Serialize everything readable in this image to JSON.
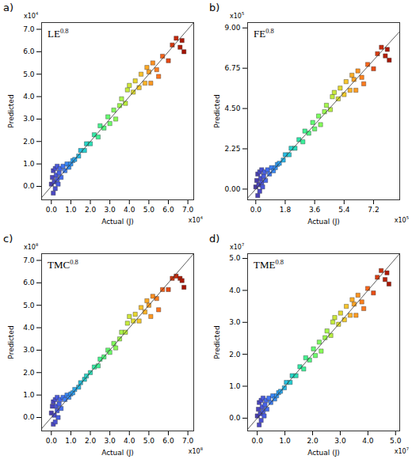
{
  "chart_data": [
    {
      "type": "scatter",
      "title": "a)",
      "annotation": {
        "text": "LE",
        "superscript": "0.8"
      },
      "x_label": "Actual (J)",
      "y_label": "Predicted",
      "x_multiplier": {
        "text": "x10",
        "superscript": "4"
      },
      "y_multiplier": {
        "text": "x10",
        "superscript": "4"
      },
      "marker": "square",
      "x": [
        0,
        0.05,
        0.1,
        0.1,
        0.15,
        0.2,
        0.2,
        0.25,
        0.3,
        0.3,
        0.35,
        0.4,
        0.45,
        0.5,
        0.6,
        0.7,
        0.8,
        0.9,
        1.0,
        1.1,
        1.2,
        1.4,
        1.5,
        1.7,
        1.8,
        2.0,
        2.2,
        2.4,
        2.5,
        2.7,
        2.9,
        3.0,
        3.2,
        3.3,
        3.5,
        3.6,
        3.8,
        3.9,
        4.0,
        4.2,
        4.3,
        4.5,
        4.6,
        4.8,
        4.9,
        5.0,
        5.1,
        5.2,
        5.4,
        5.5,
        5.7,
        6.0,
        6.2,
        6.4,
        6.6,
        6.7,
        6.8
      ],
      "values": [
        0.1,
        0.4,
        0.7,
        -0.3,
        0.2,
        0.8,
        -0.1,
        0.5,
        0.3,
        0.9,
        0.1,
        0.6,
        0.8,
        0.4,
        0.9,
        0.7,
        1.0,
        0.85,
        1.0,
        1.15,
        1.2,
        1.35,
        1.6,
        1.6,
        1.9,
        1.9,
        2.3,
        2.2,
        2.7,
        2.6,
        3.1,
        2.8,
        3.4,
        3.0,
        3.6,
        3.9,
        3.7,
        4.3,
        4.5,
        4.2,
        4.7,
        4.4,
        5.0,
        4.6,
        5.3,
        5.1,
        4.6,
        5.5,
        5.2,
        4.9,
        5.8,
        5.6,
        6.3,
        6.6,
        6.2,
        6.5,
        6.0
      ],
      "xlim": [
        -0.5,
        7.3
      ],
      "ylim": [
        -0.6,
        7.3
      ],
      "xticks": [
        {
          "value": 0,
          "label": "0.0"
        },
        {
          "value": 1,
          "label": "1.0"
        },
        {
          "value": 2,
          "label": "2.0"
        },
        {
          "value": 3,
          "label": "3.0"
        },
        {
          "value": 4,
          "label": "4.0"
        },
        {
          "value": 5,
          "label": "5.0"
        },
        {
          "value": 6,
          "label": "6.0"
        },
        {
          "value": 7,
          "label": "7.0"
        }
      ],
      "yticks": [
        {
          "value": 0,
          "label": "0.0"
        },
        {
          "value": 1,
          "label": "1.0"
        },
        {
          "value": 2,
          "label": "2.0"
        },
        {
          "value": 3,
          "label": "3.0"
        },
        {
          "value": 4,
          "label": "4.0"
        },
        {
          "value": 5,
          "label": "5.0"
        },
        {
          "value": 6,
          "label": "6.0"
        },
        {
          "value": 7,
          "label": "7.0"
        }
      ]
    },
    {
      "type": "scatter",
      "title": "b)",
      "annotation": {
        "text": "FE",
        "superscript": "0.8"
      },
      "x_label": "Actual (J)",
      "y_label": "Predicted",
      "x_multiplier": {
        "text": "x10",
        "superscript": "5"
      },
      "y_multiplier": {
        "text": "x10",
        "superscript": "5"
      },
      "marker": "square",
      "x": [
        0,
        0.06,
        0.12,
        0.12,
        0.18,
        0.24,
        0.24,
        0.3,
        0.36,
        0.36,
        0.42,
        0.48,
        0.54,
        0.6,
        0.72,
        0.84,
        0.96,
        1.08,
        1.2,
        1.32,
        1.44,
        1.68,
        1.8,
        2.04,
        2.16,
        2.4,
        2.64,
        2.88,
        3.0,
        3.24,
        3.48,
        3.6,
        3.84,
        3.96,
        4.2,
        4.32,
        4.56,
        4.68,
        4.8,
        5.04,
        5.16,
        5.4,
        5.52,
        5.76,
        5.88,
        6.0,
        6.12,
        6.24,
        6.48,
        6.6,
        6.84,
        7.2,
        7.44,
        7.68,
        7.92,
        8.04,
        8.16
      ],
      "values": [
        0.12,
        0.48,
        0.84,
        -0.36,
        0.24,
        0.96,
        -0.12,
        0.6,
        0.36,
        1.08,
        0.12,
        0.72,
        0.96,
        0.48,
        1.08,
        0.84,
        1.2,
        1.02,
        1.2,
        1.38,
        1.44,
        1.62,
        1.92,
        1.92,
        2.28,
        2.28,
        2.76,
        2.64,
        3.24,
        3.12,
        3.72,
        3.36,
        4.08,
        3.6,
        4.32,
        4.68,
        4.44,
        5.16,
        5.4,
        5.04,
        5.64,
        5.28,
        6.0,
        5.52,
        6.36,
        6.12,
        5.52,
        6.6,
        6.24,
        5.88,
        6.96,
        6.72,
        7.56,
        7.92,
        7.44,
        7.8,
        7.2
      ],
      "xlim": [
        -0.5,
        8.8
      ],
      "ylim": [
        -0.6,
        9.3
      ],
      "xticks": [
        {
          "value": 0,
          "label": "0.0"
        },
        1.8,
        3.6,
        5.4,
        7.2
      ],
      "yticks": [
        {
          "value": 0,
          "label": "0.00"
        },
        2.25,
        {
          "value": 4.5,
          "label": "4.50"
        },
        6.75,
        {
          "value": 9,
          "label": "9.00"
        }
      ]
    },
    {
      "type": "scatter",
      "title": "c)",
      "annotation": {
        "text": "TMC",
        "superscript": "0.8"
      },
      "x_label": "Actual (J)",
      "y_label": "Predicted",
      "x_multiplier": {
        "text": "x10",
        "superscript": "8"
      },
      "y_multiplier": {
        "text": "x10",
        "superscript": "8"
      },
      "marker": "square",
      "x": [
        0,
        0.05,
        0.1,
        0.1,
        0.15,
        0.2,
        0.2,
        0.25,
        0.3,
        0.3,
        0.35,
        0.4,
        0.45,
        0.5,
        0.6,
        0.7,
        0.8,
        0.9,
        1.0,
        1.1,
        1.2,
        1.4,
        1.5,
        1.7,
        1.8,
        2.0,
        2.2,
        2.4,
        2.5,
        2.7,
        2.9,
        3.0,
        3.2,
        3.3,
        3.5,
        3.6,
        3.8,
        3.9,
        4.0,
        4.2,
        4.3,
        4.5,
        4.6,
        4.8,
        4.9,
        5.0,
        5.1,
        5.2,
        5.4,
        5.5,
        5.7,
        6.0,
        6.2,
        6.4,
        6.6,
        6.7,
        6.8
      ],
      "values": [
        0.2,
        0.5,
        0.7,
        -0.3,
        0.1,
        0.8,
        -0.2,
        0.5,
        0.3,
        0.9,
        0.0,
        0.6,
        0.8,
        0.4,
        0.9,
        0.8,
        1.0,
        0.9,
        1.05,
        1.1,
        1.25,
        1.35,
        1.55,
        1.7,
        1.85,
        2.0,
        2.25,
        2.3,
        2.6,
        2.7,
        3.0,
        2.9,
        3.3,
        3.1,
        3.5,
        3.8,
        3.8,
        4.2,
        4.5,
        4.3,
        4.6,
        4.3,
        4.9,
        4.7,
        5.2,
        5.0,
        4.5,
        5.4,
        5.3,
        4.8,
        5.7,
        5.7,
        6.2,
        6.3,
        6.2,
        6.1,
        5.8
      ],
      "xlim": [
        -0.5,
        7.3
      ],
      "ylim": [
        -0.6,
        7.3
      ],
      "xticks": [
        {
          "value": 0,
          "label": "0.0"
        },
        {
          "value": 1,
          "label": "1.0"
        },
        {
          "value": 2,
          "label": "2.0"
        },
        {
          "value": 3,
          "label": "3.0"
        },
        {
          "value": 4,
          "label": "4.0"
        },
        {
          "value": 5,
          "label": "5.0"
        },
        {
          "value": 6,
          "label": "6.0"
        },
        {
          "value": 7,
          "label": "7.0"
        }
      ],
      "yticks": [
        {
          "value": 0,
          "label": "0.0"
        },
        {
          "value": 1,
          "label": "1.0"
        },
        {
          "value": 2,
          "label": "2.0"
        },
        {
          "value": 3,
          "label": "3.0"
        },
        {
          "value": 4,
          "label": "4.0"
        },
        {
          "value": 5,
          "label": "5.0"
        },
        {
          "value": 6,
          "label": "6.0"
        },
        {
          "value": 7,
          "label": "7.0"
        }
      ]
    },
    {
      "type": "scatter",
      "title": "d)",
      "annotation": {
        "text": "TME",
        "superscript": "0.8"
      },
      "x_label": "Actual (J)",
      "y_label": "Predicted",
      "x_multiplier": {
        "text": "x10",
        "superscript": "7"
      },
      "y_multiplier": {
        "text": "x10",
        "superscript": "7"
      },
      "marker": "square",
      "x": [
        0,
        0.04,
        0.07,
        0.07,
        0.11,
        0.14,
        0.14,
        0.18,
        0.21,
        0.21,
        0.25,
        0.28,
        0.32,
        0.35,
        0.42,
        0.49,
        0.56,
        0.63,
        0.7,
        0.77,
        0.84,
        0.98,
        1.05,
        1.19,
        1.26,
        1.4,
        1.54,
        1.68,
        1.75,
        1.89,
        2.03,
        2.1,
        2.24,
        2.31,
        2.45,
        2.52,
        2.66,
        2.73,
        2.8,
        2.94,
        3.01,
        3.15,
        3.22,
        3.36,
        3.43,
        3.5,
        3.57,
        3.64,
        3.78,
        3.85,
        3.99,
        4.2,
        4.34,
        4.48,
        4.62,
        4.69,
        4.76
      ],
      "values": [
        0.07,
        0.28,
        0.49,
        -0.21,
        0.14,
        0.56,
        -0.07,
        0.35,
        0.21,
        0.63,
        0.07,
        0.42,
        0.56,
        0.28,
        0.63,
        0.49,
        0.7,
        0.6,
        0.7,
        0.8,
        0.84,
        0.95,
        1.12,
        1.12,
        1.33,
        1.33,
        1.61,
        1.54,
        1.89,
        1.82,
        2.17,
        1.96,
        2.38,
        2.1,
        2.52,
        2.73,
        2.59,
        3.01,
        3.15,
        2.94,
        3.29,
        3.08,
        3.5,
        3.22,
        3.71,
        3.57,
        3.22,
        3.85,
        3.64,
        3.43,
        4.06,
        3.92,
        4.41,
        4.62,
        4.34,
        4.55,
        4.2
      ],
      "xlim": [
        -0.35,
        5.15
      ],
      "ylim": [
        -0.4,
        5.15
      ],
      "xticks": [
        {
          "value": 0,
          "label": "0.0"
        },
        {
          "value": 1,
          "label": "1.0"
        },
        {
          "value": 2,
          "label": "2.0"
        },
        {
          "value": 3,
          "label": "3.0"
        },
        {
          "value": 4,
          "label": "4.0"
        },
        {
          "value": 5,
          "label": "5.0"
        }
      ],
      "yticks": [
        {
          "value": 0,
          "label": "0.0"
        },
        {
          "value": 1,
          "label": "1.0"
        },
        {
          "value": 2,
          "label": "2.0"
        },
        {
          "value": 3,
          "label": "3.0"
        },
        {
          "value": 4,
          "label": "4.0"
        },
        {
          "value": 5,
          "label": "5.0"
        }
      ]
    }
  ]
}
